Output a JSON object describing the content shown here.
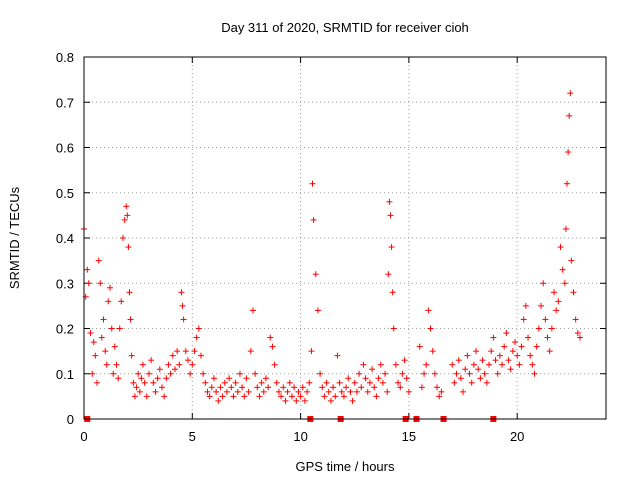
{
  "chart_data": {
    "type": "scatter",
    "title": "Day 311 of 2020, SRMTID for receiver cioh",
    "xlabel": "GPS time / hours",
    "ylabel": "SRMTID / TECUs",
    "xlim": [
      0,
      24.1
    ],
    "ylim": [
      0,
      0.8
    ],
    "x_ticks": [
      0,
      5,
      10,
      15,
      20
    ],
    "x_tick_labels": [
      "0",
      "5",
      "10",
      "15",
      "20"
    ],
    "y_ticks": [
      0,
      0.1,
      0.2,
      0.3,
      0.4,
      0.5,
      0.6,
      0.7,
      0.8
    ],
    "y_tick_labels": [
      "0",
      "0.1",
      "0.2",
      "0.3",
      "0.4",
      "0.5",
      "0.6",
      "0.7",
      "0.8"
    ],
    "grid": true,
    "marker": "+",
    "color": "#ff0000",
    "series": [
      {
        "name": "SRMTID",
        "x": [
          0.0,
          0.08,
          0.15,
          0.22,
          0.3,
          0.38,
          0.45,
          0.52,
          0.6,
          0.68,
          0.75,
          0.82,
          0.9,
          0.98,
          1.05,
          1.12,
          1.2,
          1.28,
          1.35,
          1.42,
          1.5,
          1.58,
          1.65,
          1.72,
          1.8,
          1.88,
          1.95,
          2.0,
          2.05,
          2.1,
          2.15,
          2.2,
          2.28,
          2.35,
          2.42,
          2.5,
          2.58,
          2.65,
          2.72,
          2.8,
          2.9,
          3.0,
          3.1,
          3.2,
          3.3,
          3.4,
          3.5,
          3.6,
          3.7,
          3.8,
          3.9,
          4.0,
          4.1,
          4.2,
          4.3,
          4.4,
          4.5,
          4.55,
          4.6,
          4.7,
          4.8,
          4.9,
          5.0,
          5.1,
          5.2,
          5.3,
          5.4,
          5.5,
          5.6,
          5.7,
          5.8,
          5.9,
          6.0,
          6.1,
          6.2,
          6.3,
          6.4,
          6.5,
          6.6,
          6.7,
          6.8,
          6.9,
          7.0,
          7.1,
          7.2,
          7.3,
          7.4,
          7.5,
          7.6,
          7.7,
          7.8,
          7.9,
          8.0,
          8.1,
          8.2,
          8.3,
          8.4,
          8.5,
          8.6,
          8.7,
          8.8,
          8.9,
          9.0,
          9.1,
          9.2,
          9.3,
          9.4,
          9.5,
          9.6,
          9.7,
          9.8,
          9.9,
          10.0,
          10.1,
          10.2,
          10.3,
          10.4,
          10.5,
          10.55,
          10.6,
          10.7,
          10.8,
          10.9,
          11.0,
          11.1,
          11.2,
          11.3,
          11.4,
          11.5,
          11.6,
          11.7,
          11.8,
          11.9,
          12.0,
          12.1,
          12.2,
          12.3,
          12.4,
          12.5,
          12.6,
          12.7,
          12.8,
          12.9,
          13.0,
          13.1,
          13.2,
          13.3,
          13.4,
          13.5,
          13.6,
          13.7,
          13.8,
          13.9,
          14.0,
          14.05,
          14.1,
          14.15,
          14.2,
          14.25,
          14.3,
          14.4,
          14.5,
          14.6,
          14.7,
          14.8,
          14.9,
          15.0,
          15.5,
          15.6,
          15.7,
          15.8,
          15.9,
          16.0,
          16.1,
          16.2,
          16.3,
          16.4,
          16.5,
          17.0,
          17.1,
          17.2,
          17.3,
          17.4,
          17.5,
          17.6,
          17.7,
          17.8,
          17.9,
          18.0,
          18.1,
          18.2,
          18.3,
          18.4,
          18.5,
          18.6,
          18.7,
          18.8,
          18.9,
          19.0,
          19.1,
          19.2,
          19.3,
          19.4,
          19.5,
          19.6,
          19.7,
          19.8,
          19.9,
          20.0,
          20.1,
          20.2,
          20.3,
          20.4,
          20.5,
          20.6,
          20.7,
          20.8,
          20.9,
          21.0,
          21.1,
          21.2,
          21.3,
          21.4,
          21.5,
          21.6,
          21.7,
          21.8,
          21.9,
          22.0,
          22.1,
          22.2,
          22.25,
          22.3,
          22.35,
          22.4,
          22.45,
          22.5,
          22.6,
          22.7,
          22.8,
          22.9
        ],
        "y": [
          0.42,
          0.27,
          0.33,
          0.3,
          0.19,
          0.1,
          0.17,
          0.14,
          0.08,
          0.35,
          0.3,
          0.18,
          0.22,
          0.15,
          0.12,
          0.26,
          0.29,
          0.2,
          0.1,
          0.16,
          0.12,
          0.09,
          0.2,
          0.26,
          0.4,
          0.44,
          0.47,
          0.45,
          0.38,
          0.28,
          0.22,
          0.14,
          0.08,
          0.05,
          0.07,
          0.1,
          0.06,
          0.09,
          0.12,
          0.08,
          0.05,
          0.1,
          0.13,
          0.08,
          0.06,
          0.09,
          0.11,
          0.07,
          0.05,
          0.09,
          0.12,
          0.1,
          0.14,
          0.11,
          0.15,
          0.12,
          0.28,
          0.25,
          0.22,
          0.15,
          0.13,
          0.1,
          0.12,
          0.15,
          0.18,
          0.2,
          0.14,
          0.1,
          0.08,
          0.06,
          0.05,
          0.07,
          0.09,
          0.06,
          0.04,
          0.07,
          0.05,
          0.08,
          0.06,
          0.09,
          0.07,
          0.05,
          0.08,
          0.06,
          0.1,
          0.07,
          0.05,
          0.09,
          0.06,
          0.15,
          0.24,
          0.1,
          0.07,
          0.05,
          0.08,
          0.06,
          0.09,
          0.07,
          0.18,
          0.16,
          0.12,
          0.08,
          0.06,
          0.05,
          0.07,
          0.04,
          0.06,
          0.08,
          0.05,
          0.07,
          0.04,
          0.06,
          0.05,
          0.07,
          0.04,
          0.06,
          0.08,
          0.15,
          0.52,
          0.44,
          0.32,
          0.24,
          0.1,
          0.07,
          0.05,
          0.08,
          0.06,
          0.04,
          0.07,
          0.05,
          0.14,
          0.08,
          0.06,
          0.05,
          0.07,
          0.09,
          0.06,
          0.04,
          0.08,
          0.06,
          0.1,
          0.07,
          0.12,
          0.09,
          0.06,
          0.08,
          0.11,
          0.07,
          0.05,
          0.09,
          0.12,
          0.08,
          0.1,
          0.06,
          0.32,
          0.48,
          0.45,
          0.38,
          0.28,
          0.2,
          0.12,
          0.08,
          0.07,
          0.1,
          0.13,
          0.09,
          0.06,
          0.16,
          0.07,
          0.1,
          0.12,
          0.24,
          0.2,
          0.15,
          0.1,
          0.07,
          0.05,
          0.06,
          0.12,
          0.08,
          0.1,
          0.13,
          0.09,
          0.06,
          0.11,
          0.14,
          0.1,
          0.08,
          0.12,
          0.15,
          0.11,
          0.09,
          0.13,
          0.1,
          0.08,
          0.12,
          0.15,
          0.18,
          0.13,
          0.1,
          0.14,
          0.12,
          0.16,
          0.19,
          0.13,
          0.11,
          0.15,
          0.17,
          0.14,
          0.12,
          0.16,
          0.22,
          0.25,
          0.18,
          0.14,
          0.12,
          0.1,
          0.16,
          0.2,
          0.25,
          0.3,
          0.22,
          0.18,
          0.15,
          0.2,
          0.28,
          0.24,
          0.26,
          0.38,
          0.33,
          0.3,
          0.42,
          0.52,
          0.59,
          0.67,
          0.72,
          0.35,
          0.28,
          0.22,
          0.19,
          0.18
        ]
      }
    ],
    "gap_markers_x": [
      0.15,
      10.45,
      11.85,
      14.85,
      15.35,
      16.6,
      18.9
    ]
  }
}
